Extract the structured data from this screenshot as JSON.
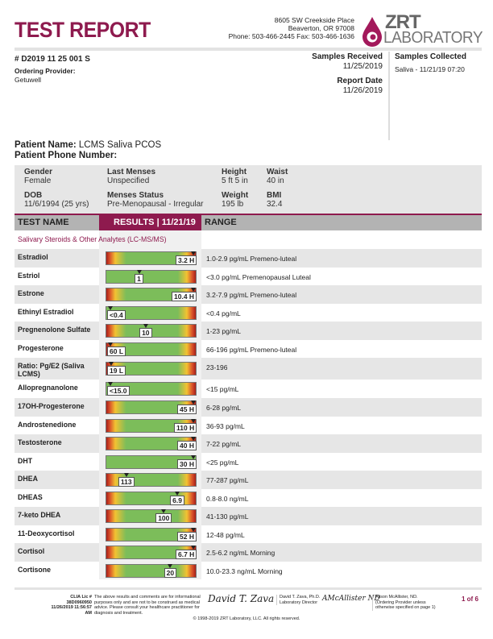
{
  "header": {
    "title": "TEST REPORT",
    "address1": "8605 SW Creekside Place",
    "address2": "Beaverton, OR 97008",
    "phone": "Phone: 503-466-2445 Fax: 503-466-1636",
    "logo_text_1": "ZRT",
    "logo_text_2": "LABORATORY",
    "brand_color": "#8e1a4e"
  },
  "report": {
    "id": "# D2019 11 25 001 S",
    "ordering_provider_label": "Ordering Provider:",
    "ordering_provider": "Getuwell",
    "samples_received_label": "Samples Received",
    "samples_received": "11/25/2019",
    "report_date_label": "Report Date",
    "report_date": "11/26/2019",
    "samples_collected_label": "Samples Collected",
    "samples_collected": "Saliva - 11/21/19 07:20"
  },
  "patient": {
    "name_label": "Patient Name:",
    "name": "LCMS Saliva PCOS",
    "phone_label": "Patient Phone Number:",
    "fields": [
      {
        "label": "Gender",
        "value": "Female"
      },
      {
        "label": "Last Menses",
        "value": "Unspecified"
      },
      {
        "label": "Height",
        "value": "5 ft 5 in"
      },
      {
        "label": "Waist",
        "value": "40 in"
      },
      {
        "label": "DOB",
        "value": "11/6/1994 (25 yrs)"
      },
      {
        "label": "Menses Status",
        "value": "Pre-Menopausal - Irregular"
      },
      {
        "label": "Weight",
        "value": "195 lb"
      },
      {
        "label": "BMI",
        "value": "32.4"
      }
    ]
  },
  "table": {
    "col_test": "TEST NAME",
    "col_results": "RESULTS | 11/21/19",
    "col_range": "RANGE",
    "section": "Salivary Steroids & Other Analytes (LC-MS/MS)",
    "rows": [
      {
        "name": "Estradiol",
        "value": "3.2 H",
        "range": "1.0-2.9 pg/mL Premeno-luteal",
        "scale": "two",
        "marker": 0.96
      },
      {
        "name": "Estriol",
        "value": "1",
        "range": "<3.0 pg/mL Premenopausal Luteal",
        "scale": "up",
        "marker": 0.36
      },
      {
        "name": "Estrone",
        "value": "10.4 H",
        "range": "3.2-7.9 pg/mL Premeno-luteal",
        "scale": "two",
        "marker": 0.96
      },
      {
        "name": "Ethinyl Estradiol",
        "value": "<0.4",
        "range": "<0.4 pg/mL",
        "scale": "up",
        "marker": 0.04
      },
      {
        "name": "Pregnenolone Sulfate",
        "value": "10",
        "range": "1-23 pg/mL",
        "scale": "two",
        "marker": 0.43
      },
      {
        "name": "Progesterone",
        "value": "60 L",
        "range": "66-196 pg/mL Premeno-luteal",
        "scale": "two",
        "marker": 0.04
      },
      {
        "name": "Ratio: Pg/E2 (Saliva LCMS)",
        "value": "19 L",
        "range": "23-196",
        "scale": "two",
        "marker": 0.05
      },
      {
        "name": "Allopregnanolone",
        "value": "<15.0",
        "range": "<15 pg/mL",
        "scale": "up",
        "marker": 0.04
      },
      {
        "name": "17OH-Progesterone",
        "value": "45 H",
        "range": "6-28 pg/mL",
        "scale": "two",
        "marker": 0.96
      },
      {
        "name": "Androstenedione",
        "value": "110 H",
        "range": "36-93 pg/mL",
        "scale": "two",
        "marker": 0.96
      },
      {
        "name": "Testosterone",
        "value": "40 H",
        "range": "7-22 pg/mL",
        "scale": "two",
        "marker": 0.96
      },
      {
        "name": "DHT",
        "value": "30 H",
        "range": "<25 pg/mL",
        "scale": "none",
        "marker": 0.96
      },
      {
        "name": "DHEA",
        "value": "113",
        "range": "77-287 pg/mL",
        "scale": "two",
        "marker": 0.22
      },
      {
        "name": "DHEAS",
        "value": "6.9",
        "range": "0.8-8.0 ng/mL",
        "scale": "two",
        "marker": 0.78
      },
      {
        "name": "7-keto DHEA",
        "value": "100",
        "range": "41-130 pg/mL",
        "scale": "two",
        "marker": 0.63
      },
      {
        "name": "11-Deoxycortisol",
        "value": "52 H",
        "range": "12-48 pg/mL",
        "scale": "two",
        "marker": 0.96
      },
      {
        "name": "Cortisol",
        "value": "6.7 H",
        "range": "2.5-6.2 ng/mL Morning",
        "scale": "two",
        "marker": 0.96
      },
      {
        "name": "Cortisone",
        "value": "20",
        "range": "10.0-23.3 ng/mL Morning",
        "scale": "two",
        "marker": 0.7
      }
    ]
  },
  "footer": {
    "clia": "CLIA Lic # 38D0960950",
    "printed": "11/26/2019 11:56:57 AM",
    "disclaimer": "The above results and comments are for informational purposes only and are not to be construed as medical advice. Please consult your healthcare practitioner for diagnosis and treatment.",
    "director_name": "David T. Zava, Ph.D.",
    "director_title": "Laboratory Director",
    "provider_name": "Alison McAllister, ND.",
    "provider_note": "(Ordering Provider unless otherwise specified on page 1)",
    "page": "1 of 6",
    "copyright": "© 1998-2019 ZRT Laboratory, LLC. All rights reserved."
  }
}
